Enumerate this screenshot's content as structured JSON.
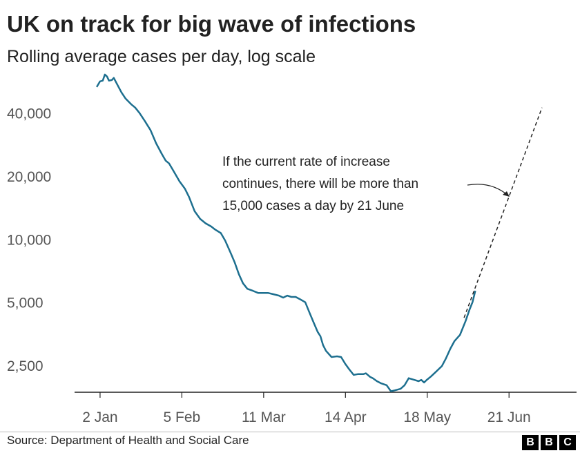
{
  "chart_data": {
    "type": "line",
    "title": "UK on track for big wave of infections",
    "subtitle": "Rolling average cases per day, log scale",
    "xlabel": "",
    "ylabel": "",
    "x_unit": "days since 2 Jan",
    "y_scale": "log",
    "ylim": [
      1860,
      62000
    ],
    "xlim": [
      -10.6,
      199.5
    ],
    "yticks": [
      {
        "value": 2500,
        "label": "2,500"
      },
      {
        "value": 5000,
        "label": "5,000"
      },
      {
        "value": 10000,
        "label": "10,000"
      },
      {
        "value": 20000,
        "label": "20,000"
      },
      {
        "value": 40000,
        "label": "40,000"
      }
    ],
    "xticks": [
      {
        "value": 0,
        "label": "2 Jan"
      },
      {
        "value": 34,
        "label": "5 Feb"
      },
      {
        "value": 68,
        "label": "11 Mar"
      },
      {
        "value": 102,
        "label": "14 Apr"
      },
      {
        "value": 136,
        "label": "18 May"
      },
      {
        "value": 170,
        "label": "21 Jun"
      }
    ],
    "series": [
      {
        "name": "Rolling average cases",
        "color": "#1d6f8f",
        "style": "solid",
        "x": [
          -1.4,
          0,
          1.1,
          2,
          2.9,
          3.7,
          4.9,
          5.7,
          7.2,
          8.9,
          10.6,
          12.9,
          14.6,
          16.4,
          18.7,
          21,
          23.3,
          25.6,
          27.3,
          28.7,
          30.7,
          33,
          35.3,
          37,
          39.3,
          41.6,
          43.9,
          46.2,
          47.9,
          50.2,
          52,
          54.3,
          56,
          57.7,
          59.4,
          61.2,
          63.5,
          65.7,
          69.8,
          72.1,
          74.4,
          76.1,
          77.8,
          79.5,
          81.3,
          83,
          85.3,
          87,
          88.7,
          90.4,
          91.6,
          92.7,
          93.9,
          96.2,
          98.5,
          100.2,
          101.9,
          103.6,
          105.4,
          107.1,
          109.4,
          110.5,
          112.3,
          113.4,
          115.1,
          116.9,
          119.1,
          120.9,
          122.6,
          124.9,
          126.6,
          128.3,
          130.6,
          132.4,
          133.5,
          134.7,
          135.8,
          137.5,
          139.8,
          142.1,
          143.8,
          145.6,
          147.3,
          149.6,
          151.9,
          153.6,
          154.8,
          156
        ],
        "y": [
          53300,
          56700,
          57100,
          61100,
          59800,
          57100,
          57500,
          58900,
          54600,
          50200,
          46900,
          44100,
          42500,
          40000,
          36500,
          33100,
          28700,
          25600,
          23700,
          23000,
          21000,
          18900,
          17400,
          15900,
          13600,
          12500,
          11900,
          11500,
          11100,
          10700,
          9850,
          8590,
          7730,
          6800,
          6160,
          5800,
          5670,
          5540,
          5540,
          5460,
          5380,
          5260,
          5380,
          5300,
          5300,
          5180,
          5000,
          4480,
          4020,
          3620,
          3440,
          3120,
          2930,
          2740,
          2760,
          2740,
          2540,
          2390,
          2250,
          2270,
          2270,
          2290,
          2200,
          2170,
          2100,
          2050,
          2010,
          1880,
          1900,
          1930,
          2010,
          2170,
          2130,
          2100,
          2130,
          2070,
          2130,
          2210,
          2340,
          2480,
          2700,
          3000,
          3260,
          3490,
          4060,
          4620,
          5000,
          5670
        ]
      },
      {
        "name": "Projection",
        "color": "#222222",
        "style": "dashed",
        "x": [
          151.3,
          183.7
        ],
        "y": [
          4220,
          42500
        ]
      }
    ],
    "annotations": [
      {
        "lines": [
          "If the current rate of increase",
          "continues, there will be more than",
          "15,000 cases a day by 21 June"
        ]
      }
    ],
    "grid": false,
    "legend": "none"
  },
  "footer": {
    "source": "Source: Department of Health and Social Care",
    "logo": [
      "B",
      "B",
      "C"
    ]
  }
}
